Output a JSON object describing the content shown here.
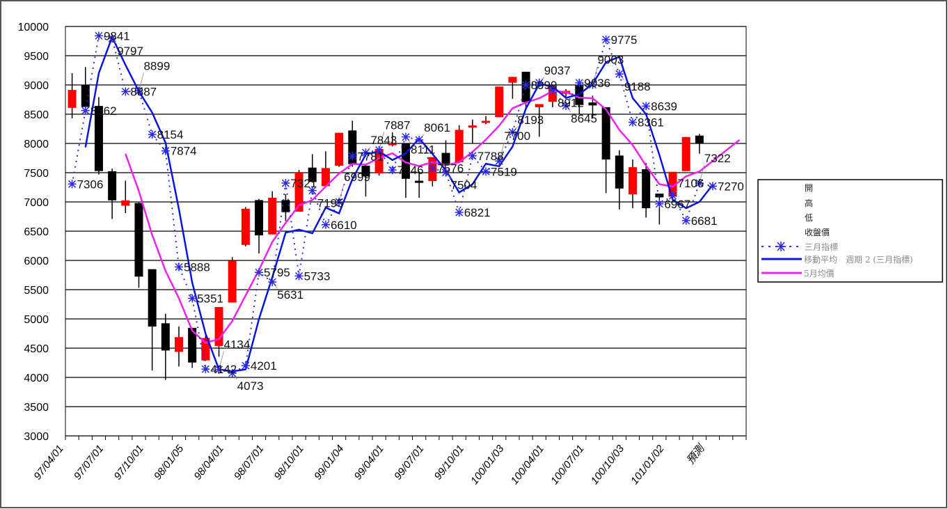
{
  "chart_data": {
    "type": "candlestick",
    "title": "",
    "ylim": [
      3000,
      10000
    ],
    "yticks": [
      "10000",
      "9500",
      "9000",
      "8500",
      "8000",
      "7500",
      "7000",
      "6500",
      "6000",
      "5500",
      "5000",
      "4500",
      "4000",
      "3500",
      "3000"
    ],
    "ytick_values": [
      10000,
      9500,
      9000,
      8500,
      8000,
      7500,
      7000,
      6500,
      6000,
      5500,
      5000,
      4500,
      4000,
      3500,
      3000
    ],
    "slot_count": 51,
    "xlabels": [
      "97/04/01",
      "97/07/01",
      "97/10/01",
      "98/01/05",
      "98/04/01",
      "98/07/01",
      "98/10/01",
      "99/01/04",
      "99/04/01",
      "99/07/01",
      "99/10/01",
      "100/01/03",
      "100/04/01",
      "100/07/01",
      "100/10/03",
      "101/01/02",
      "預測"
    ],
    "xlabel_every": 3,
    "grid": true,
    "legend_position": "right",
    "legend": {
      "open": "開",
      "high": "高",
      "low": "低",
      "close": "收盤價",
      "index": "三月指標",
      "ma2": "移動平均　週期 2 (三月指標)",
      "ma5": "5月均價"
    },
    "candles": [
      [
        8609,
        9202,
        8427,
        8915
      ],
      [
        8997,
        9307,
        8550,
        8623
      ],
      [
        8641,
        8792,
        7469,
        7528
      ],
      [
        7524,
        7570,
        6708,
        7027
      ],
      [
        6936,
        7364,
        6808,
        7027
      ],
      [
        6981,
        6990,
        5531,
        5723
      ],
      [
        5850,
        5850,
        4118,
        4870
      ],
      [
        4925,
        5089,
        3958,
        4460
      ],
      [
        4437,
        4870,
        4186,
        4688
      ],
      [
        4847,
        4847,
        4163,
        4254
      ],
      [
        4291,
        4720,
        4280,
        4674
      ],
      [
        4537,
        5203,
        4355,
        5203
      ],
      [
        5280,
        6056,
        5280,
        5996
      ],
      [
        6265,
        6912,
        6240,
        6884
      ],
      [
        7031,
        7051,
        6118,
        6428
      ],
      [
        6444,
        7182,
        6444,
        7071
      ],
      [
        7031,
        7131,
        6674,
        6825
      ],
      [
        6833,
        7547,
        6833,
        7500
      ],
      [
        7587,
        7817,
        7330,
        7341
      ],
      [
        7269,
        7865,
        7269,
        7579
      ],
      [
        7619,
        8182,
        7600,
        8182
      ],
      [
        8222,
        8389,
        7600,
        7646
      ],
      [
        7619,
        7640,
        7091,
        7436
      ],
      [
        7488,
        7950,
        7450,
        7905
      ],
      [
        7964,
        8190,
        7950,
        7992
      ],
      [
        8003,
        8003,
        7070,
        7396
      ],
      [
        7350,
        7522,
        7070,
        7340
      ],
      [
        7357,
        7767,
        7266,
        7767
      ],
      [
        7838,
        8054,
        7640,
        7649
      ],
      [
        7680,
        8311,
        7680,
        8232
      ],
      [
        8285,
        8409,
        8003,
        8295
      ],
      [
        8365,
        8468,
        8330,
        8375
      ],
      [
        8448,
        8972,
        8448,
        8972
      ],
      [
        9039,
        9138,
        8764,
        9138
      ],
      [
        9225,
        9225,
        8600,
        8705
      ],
      [
        8618,
        8673,
        8114,
        8673
      ],
      [
        8712,
        8980,
        8618,
        8980
      ],
      [
        8850,
        8930,
        8800,
        8900
      ],
      [
        8996,
        9050,
        8500,
        8658
      ],
      [
        8700,
        8817,
        8440,
        8650
      ],
      [
        8619,
        8619,
        7150,
        7725
      ],
      [
        7793,
        7884,
        6872,
        7229
      ],
      [
        7130,
        7725,
        6892,
        7594
      ],
      [
        7559,
        7666,
        6733,
        6892
      ],
      [
        7142,
        7142,
        6614,
        7078
      ],
      [
        7090,
        7515,
        7090,
        7515
      ],
      [
        7527,
        8110,
        7527,
        8110
      ],
      [
        8134,
        8162,
        7825,
        8003
      ]
    ],
    "candle_fields": [
      "open",
      "high",
      "low",
      "close"
    ],
    "index_values": [
      7306,
      8562,
      9841,
      9797,
      8887,
      8899,
      8154,
      7874,
      5888,
      5351,
      4142,
      4134,
      4073,
      4201,
      5795,
      5631,
      7321,
      5733,
      7195,
      6610,
      6999,
      7781,
      7843,
      7887,
      7546,
      8111,
      8061,
      7576,
      7504,
      6821,
      7788,
      7519,
      7700,
      8193,
      8999,
      9037,
      8912,
      8645,
      9036,
      9003,
      9775,
      9188,
      8361,
      8639,
      6967,
      7106,
      6681,
      7322,
      7270
    ],
    "index_labels": [
      "7306",
      "8562",
      "9841",
      "9797",
      "8887",
      "8899",
      "8154",
      "7874",
      "5888",
      "5351",
      "4142",
      "4134",
      "4073",
      "4201",
      "5795",
      "5631",
      "7321",
      "5733",
      "7195",
      "6610",
      "6999",
      "7781",
      "7843",
      "7887",
      "7546",
      "8111",
      "8061",
      "7576",
      "7504",
      "6821",
      "7788",
      "7519",
      "7700",
      "8193",
      "8999",
      "9037",
      "8912",
      "8645",
      "9036",
      "9003",
      "9775",
      "9188",
      "8361",
      "8639",
      "6967",
      "7106",
      "6681",
      "7322",
      "7270"
    ],
    "ma2_period": 2,
    "ma5_period": 5,
    "ma5_forecast": [
      7700,
      7880,
      8060
    ],
    "colors": {
      "up": "#ff0000",
      "down": "#000000",
      "index": "#2a2ae6",
      "ma2": "#0a14e0",
      "ma5": "#ee22ee",
      "grid": "#000000"
    }
  }
}
